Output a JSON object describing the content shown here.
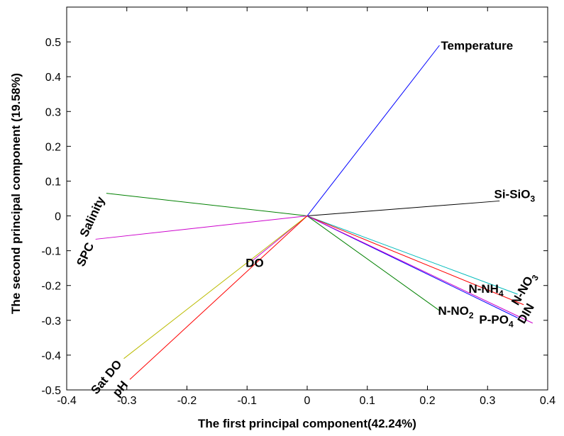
{
  "chart_data": {
    "type": "biplot",
    "xlabel": "The first principal component(42.24%)",
    "ylabel": "The second principal component (19.58%)",
    "xlim": [
      -0.4,
      0.4
    ],
    "ylim": [
      -0.5,
      0.6
    ],
    "xticks": [
      "-0.4",
      "-0.3",
      "-0.2",
      "-0.1",
      "0",
      "0.1",
      "0.2",
      "0.3",
      "0.4"
    ],
    "yticks": [
      "-0.5",
      "-0.4",
      "-0.3",
      "-0.2",
      "-0.1",
      "0",
      "0.1",
      "0.2",
      "0.3",
      "0.4",
      "0.5"
    ],
    "grid": false,
    "vectors": [
      {
        "label": "Temperature",
        "sub": "",
        "x": 0.22,
        "y": 0.49,
        "color": "#0000ff",
        "rotate": 0
      },
      {
        "label": "Si-SiO",
        "sub": "3",
        "x": 0.32,
        "y": 0.043,
        "color": "#000000",
        "rotate": 0
      },
      {
        "label": "Salinity",
        "sub": "",
        "x": -0.334,
        "y": 0.065,
        "color": "#008000",
        "rotate": -65
      },
      {
        "label": "SPC",
        "sub": "",
        "x": -0.352,
        "y": -0.067,
        "color": "#cc00cc",
        "rotate": -65
      },
      {
        "label": "DO",
        "sub": "",
        "x": -0.092,
        "y": -0.13,
        "color": "#cc00cc",
        "rotate": 0
      },
      {
        "label": "Sat DO",
        "sub": "",
        "x": -0.305,
        "y": -0.41,
        "color": "#bbbb00",
        "rotate": -50
      },
      {
        "label": "pH",
        "sub": "",
        "x": -0.295,
        "y": -0.47,
        "color": "#ff0000",
        "rotate": -50
      },
      {
        "label": "N-NH",
        "sub": "4",
        "x": 0.35,
        "y": -0.225,
        "color": "#00bbbb",
        "rotate": 0
      },
      {
        "label": "N-NO",
        "sub": "3",
        "x": 0.36,
        "y": -0.255,
        "color": "#ff0000",
        "rotate": -60
      },
      {
        "label": "N-NO",
        "sub": "2",
        "x": 0.22,
        "y": -0.272,
        "color": "#008000",
        "rotate": 0
      },
      {
        "label": "P-PO",
        "sub": "4",
        "x": 0.35,
        "y": -0.293,
        "color": "#0000ff",
        "rotate": 0
      },
      {
        "label": "DIN",
        "sub": "",
        "x": 0.375,
        "y": -0.308,
        "color": "#cc00cc",
        "rotate": -60
      }
    ]
  }
}
